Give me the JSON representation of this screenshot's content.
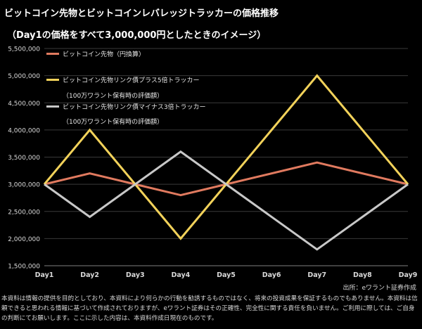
{
  "title": "ビットコイン先物とビットコインレバレッジトラッカーの価格推移",
  "subtitle": "（Day1の価格をすべて3,000,000円としたときのイメージ）",
  "source": "出所：eワラント証券作成",
  "disclaimer": "本資料は情報の提供を目的としており、本資料により何らかの行動を勧誘するものではなく、将来の投資成果を保証するものでもありません。本資料は信頼できると思われる情報に基づいて作成されておりますが、eワラント証券はその正確性、完全性に関する責任を負いません。ご利用に際しては、ご自身の判断にてお願いします。ここに示した内容は、本資料作成日現在のものです。",
  "colors": {
    "background": "#000000",
    "grid": "#3a3a3a",
    "axis_text": "#d9d9d9"
  },
  "chart_data": {
    "type": "line",
    "x": [
      "Day1",
      "Day2",
      "Day3",
      "Day4",
      "Day5",
      "Day6",
      "Day7",
      "Day8",
      "Day9"
    ],
    "ylim": [
      1500000,
      5500000
    ],
    "yticks": [
      1500000,
      2000000,
      2500000,
      3000000,
      3500000,
      4000000,
      4500000,
      5000000,
      5500000
    ],
    "ytick_labels": [
      "1,500,000",
      "2,000,000",
      "2,500,000",
      "3,000,000",
      "3,500,000",
      "4,000,000",
      "4,500,000",
      "5,000,000",
      "5,500,000"
    ],
    "grid": "horizontal",
    "legend_position": "top-left",
    "series": [
      {
        "name": "ビットコイン先物（円換算）",
        "name_line2": "",
        "color": "#e07a5f",
        "x": [
          "Day1",
          "Day2",
          "Day3",
          "Day4",
          "Day5",
          "Day7",
          "Day9"
        ],
        "values": [
          3000000,
          3200000,
          3000000,
          2800000,
          3000000,
          3400000,
          3000000
        ]
      },
      {
        "name": "ビットコイン先物リンク債プラス5倍トラッカー",
        "name_line2": "（100万ワラント保有時の評価額）",
        "color": "#f2d25a",
        "x": [
          "Day1",
          "Day2",
          "Day3",
          "Day4",
          "Day5",
          "Day7",
          "Day9"
        ],
        "values": [
          3000000,
          4000000,
          3000000,
          2000000,
          3000000,
          5000000,
          3000000
        ]
      },
      {
        "name": "ビットコイン先物リンク債マイナス3倍トラッカー",
        "name_line2": "（100万ワラント保有時の評価額）",
        "color": "#c8c8c8",
        "x": [
          "Day1",
          "Day2",
          "Day3",
          "Day4",
          "Day5",
          "Day7",
          "Day9"
        ],
        "values": [
          3000000,
          2400000,
          3000000,
          3600000,
          3000000,
          1800000,
          3000000
        ]
      }
    ]
  }
}
